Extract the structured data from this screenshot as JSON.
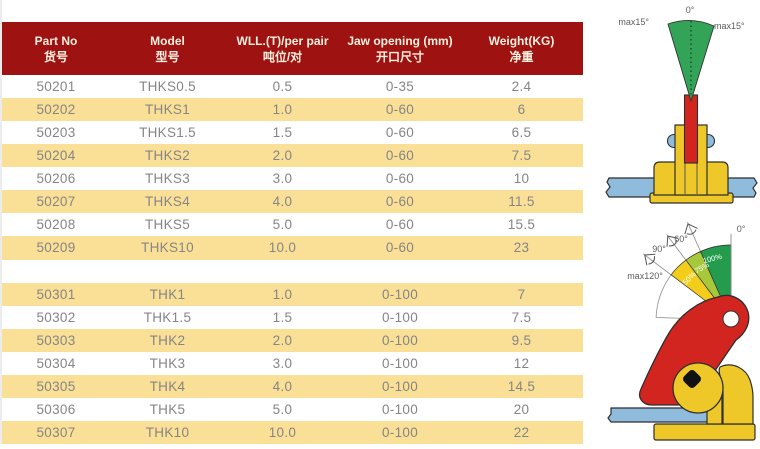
{
  "table": {
    "columns": [
      {
        "en": "Part No",
        "cn": "货号"
      },
      {
        "en": "Model",
        "cn": "型号"
      },
      {
        "en": "WLL.(T)/per pair",
        "cn": "吨位/对"
      },
      {
        "en": "Jaw opening (mm)",
        "cn": "开口尺寸"
      },
      {
        "en": "Weight(KG)",
        "cn": "净重"
      }
    ],
    "rows": [
      [
        "50201",
        "THKS0.5",
        "0.5",
        "0-35",
        "2.4"
      ],
      [
        "50202",
        "THKS1",
        "1.0",
        "0-60",
        "6"
      ],
      [
        "50203",
        "THKS1.5",
        "1.5",
        "0-60",
        "6.5"
      ],
      [
        "50204",
        "THKS2",
        "2.0",
        "0-60",
        "7.5"
      ],
      [
        "50206",
        "THKS3",
        "3.0",
        "0-60",
        "10"
      ],
      [
        "50207",
        "THKS4",
        "4.0",
        "0-60",
        "11.5"
      ],
      [
        "50208",
        "THKS5",
        "5.0",
        "0-60",
        "15.5"
      ],
      [
        "50209",
        "THKS10",
        "10.0",
        "0-60",
        "23"
      ],
      [
        "",
        "",
        "",
        "",
        ""
      ],
      [
        "50301",
        "THK1",
        "1.0",
        "0-100",
        "7"
      ],
      [
        "50302",
        "THK1.5",
        "1.5",
        "0-100",
        "7.5"
      ],
      [
        "50303",
        "THK2",
        "2.0",
        "0-100",
        "9.5"
      ],
      [
        "50304",
        "THK3",
        "3.0",
        "0-100",
        "12"
      ],
      [
        "50305",
        "THK4",
        "4.0",
        "0-100",
        "14.5"
      ],
      [
        "50306",
        "THK5",
        "5.0",
        "0-100",
        "20"
      ],
      [
        "50307",
        "THK10",
        "10.0",
        "0-100",
        "22"
      ]
    ]
  },
  "diagrams": {
    "top": {
      "zero": "0°",
      "max_left": "max15°",
      "max_right": "max15°"
    },
    "bottom": {
      "zero": "0°",
      "a60": "60°",
      "a90": "90°",
      "a120": "max120°",
      "p100": "100%",
      "p75": "75%",
      "p50": "50%"
    }
  },
  "colors": {
    "header_bg": "#9E1211",
    "header_text": "#FAF0DE",
    "row_yellow": "#FAE096",
    "row_white": "#FFFFFF",
    "row_text": "#858585",
    "green": "#33A457",
    "sector_green": "#259B4E",
    "sector_yellowgreen": "#A8C83B",
    "sector_yellow": "#F2CE1B",
    "red": "#D3251F",
    "clamp_yellow": "#EEC829",
    "steel_blue": "#8FBCDC",
    "outline": "#2E2E2E"
  }
}
